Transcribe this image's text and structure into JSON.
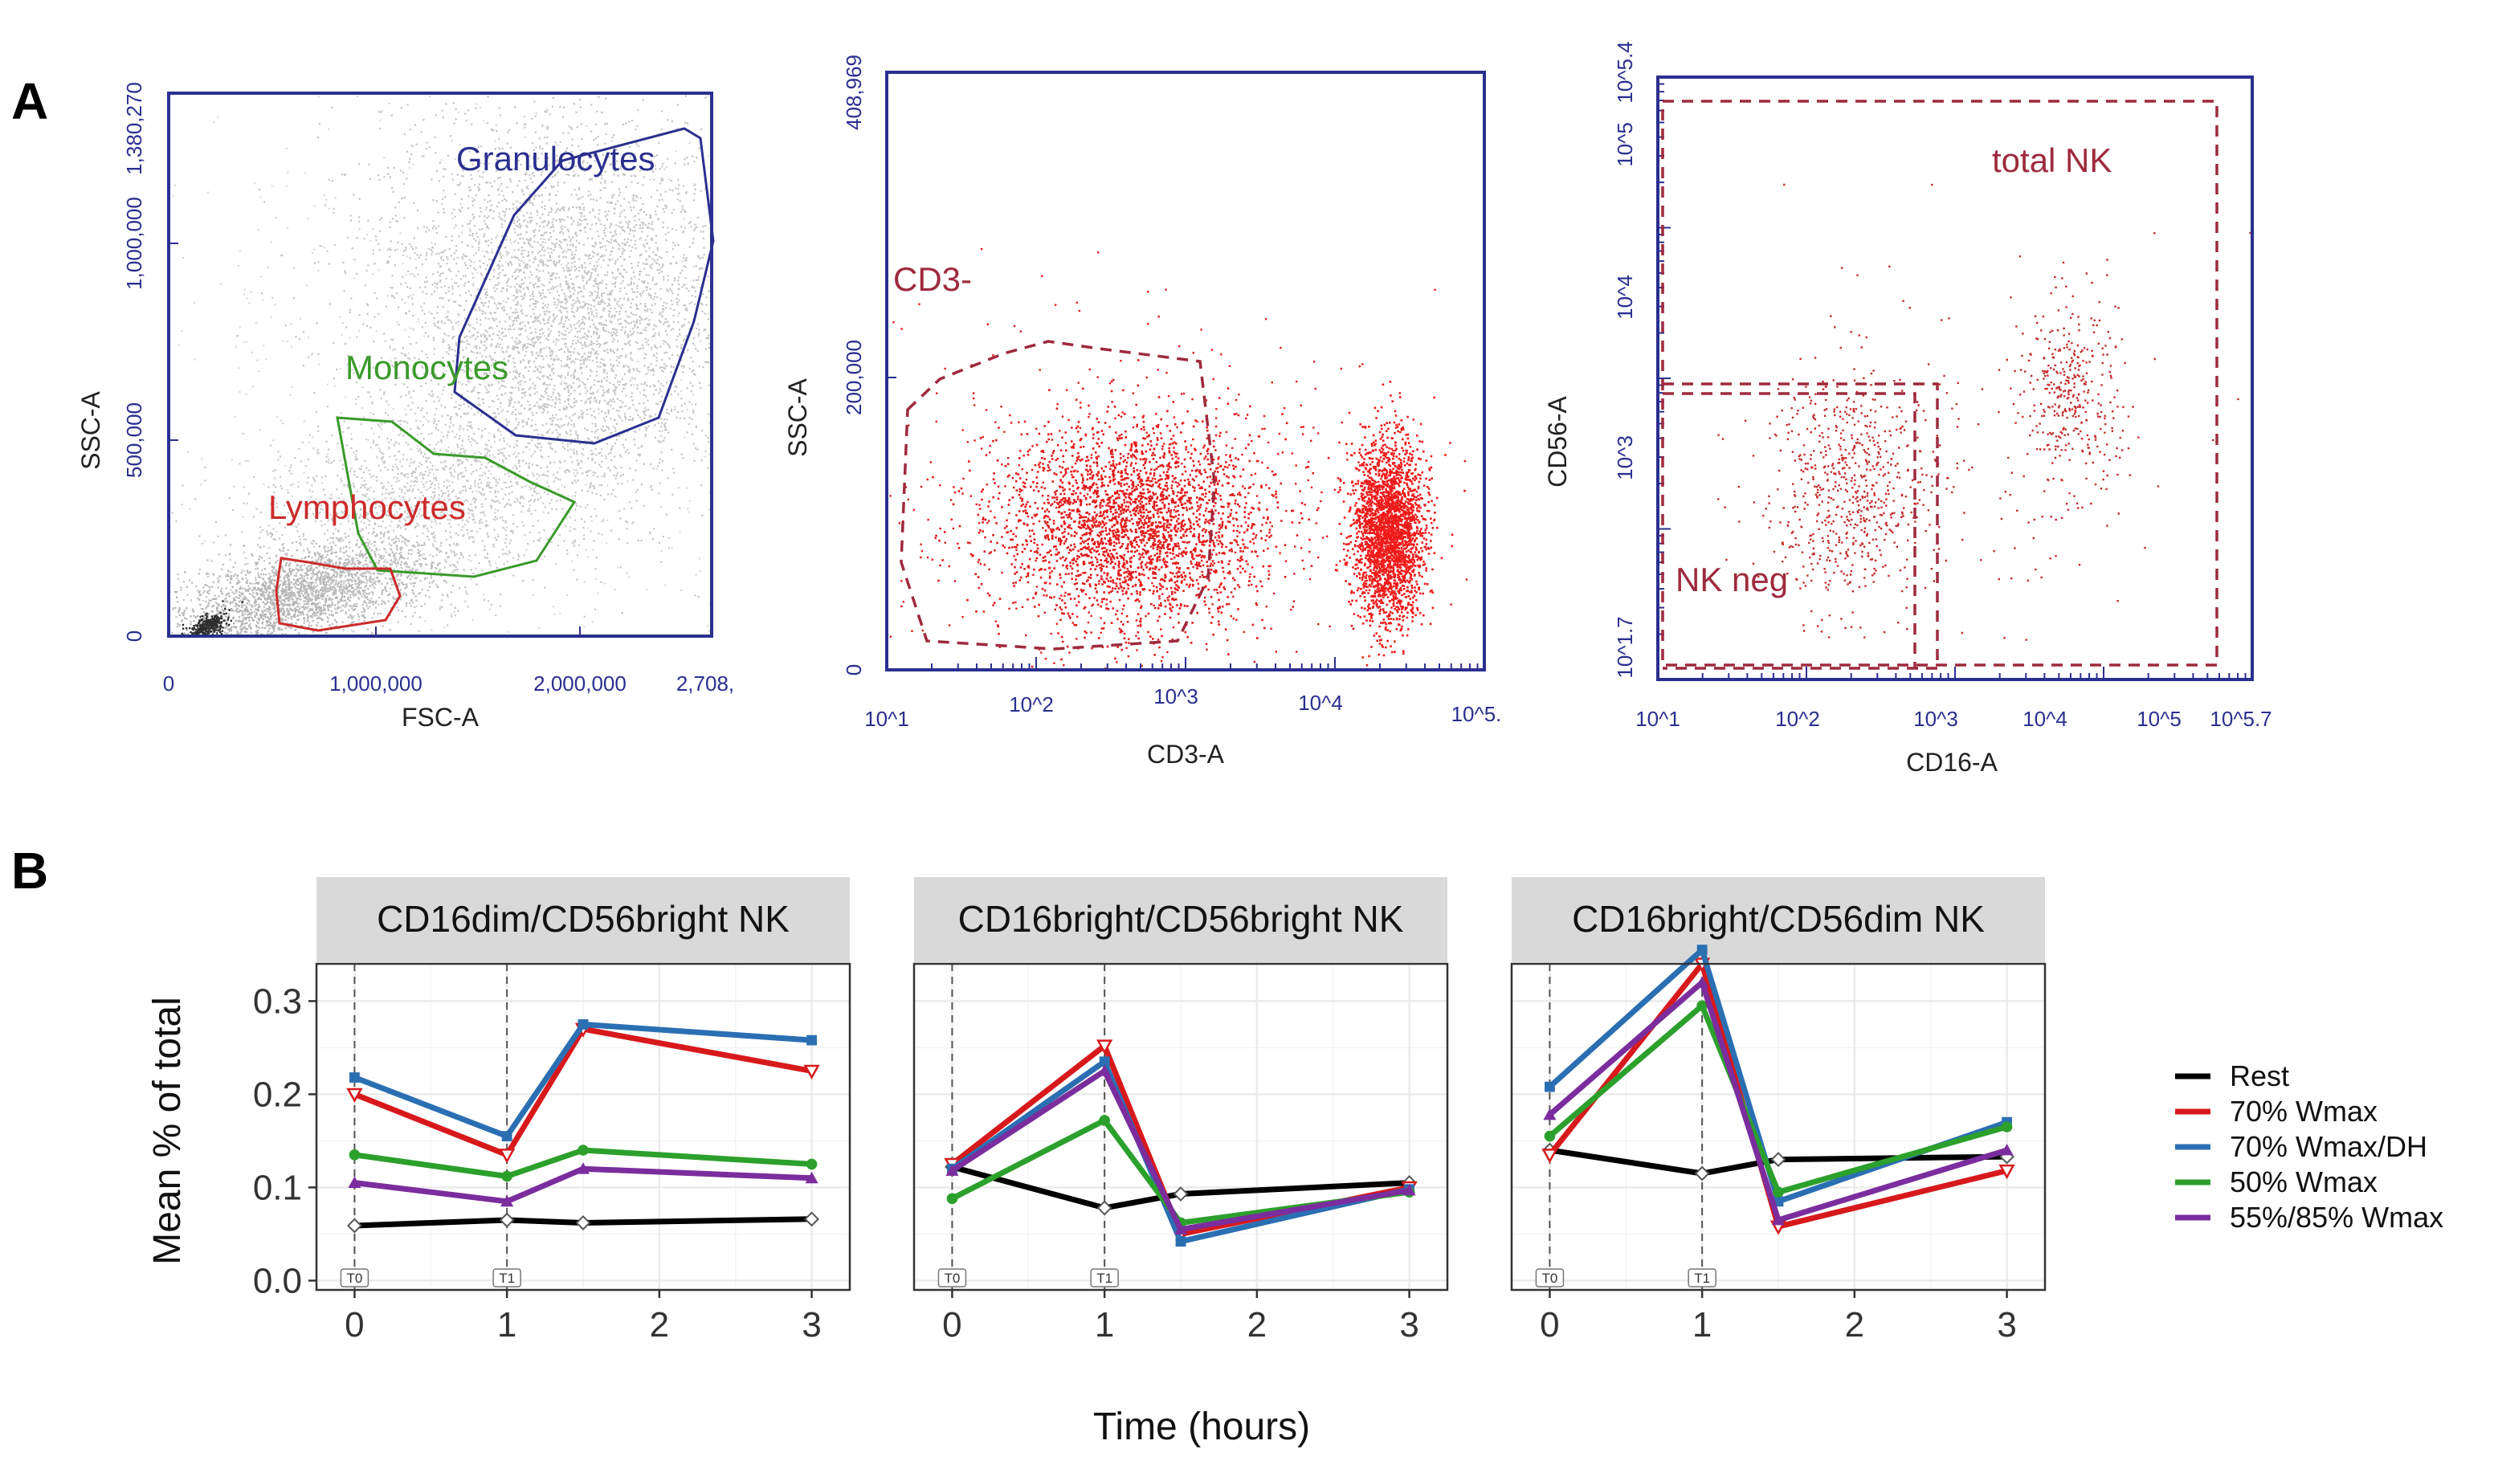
{
  "panel_a": {
    "letter": "A",
    "plots": [
      {
        "x_label": "FSC-A",
        "y_label": "SSC-A",
        "x_ticks": [
          "0",
          "1,000,000",
          "2,000,000",
          "2,708,"
        ],
        "y_ticks": [
          "0",
          "500,000",
          "1,000,000",
          "1,380,270"
        ],
        "gates": [
          {
            "label": "Granulocytes",
            "color": "#2b2f8f"
          },
          {
            "label": "Monocytes",
            "color": "#3a9a2a"
          },
          {
            "label": "Lymphocytes",
            "color": "#cc2b2b"
          }
        ]
      },
      {
        "x_label": "CD3-A",
        "y_label": "SSC-A",
        "x_ticks": [
          "10^1",
          "10^2",
          "10^3",
          "10^4",
          "10^5."
        ],
        "y_ticks": [
          "0",
          "200,000",
          "408,969"
        ],
        "gates": [
          {
            "label": "CD3-",
            "color": "#9e2a3e"
          }
        ]
      },
      {
        "x_label": "CD16-A",
        "y_label": "CD56-A",
        "x_ticks": [
          "10^1",
          "10^2",
          "10^3",
          "10^4",
          "10^5",
          "10^5.7"
        ],
        "y_ticks": [
          "10^1.7",
          "10^3",
          "10^4",
          "10^5",
          "10^5.4"
        ],
        "gates": [
          {
            "label": "total NK",
            "color": "#9e2a3e"
          },
          {
            "label": "NK neg",
            "color": "#9e2a3e"
          }
        ]
      }
    ]
  },
  "panel_b": {
    "letter": "B",
    "timepoint_labels": [
      "T0",
      "T1"
    ]
  },
  "chart_data": {
    "type": "line",
    "title": "",
    "xlabel": "Time (hours)",
    "ylabel": "Mean % of total",
    "xlim": [
      -0.25,
      3.25
    ],
    "ylim": [
      -0.01,
      0.34
    ],
    "x_ticks": [
      "0",
      "1",
      "2",
      "3"
    ],
    "y_ticks": [
      "0.0",
      "0.1",
      "0.2",
      "0.3"
    ],
    "x_tick_values": [
      0,
      1,
      2,
      3
    ],
    "y_tick_values": [
      0,
      0.1,
      0.2,
      0.3
    ],
    "x": [
      0,
      1,
      1.5,
      3
    ],
    "vlines": [
      0,
      1
    ],
    "legend": [
      "Rest",
      "70% Wmax",
      "70% Wmax/DH",
      "50% Wmax",
      "55%/85% Wmax"
    ],
    "colors": [
      "#000000",
      "#d7191c",
      "#2b6fb3",
      "#2ca02c",
      "#7b2d9e"
    ],
    "facets": [
      {
        "title": "CD16dim/CD56bright NK",
        "series": [
          {
            "name": "Rest",
            "values": [
              0.059,
              0.065,
              0.062,
              0.066
            ]
          },
          {
            "name": "70% Wmax",
            "values": [
              0.2,
              0.135,
              0.27,
              0.225
            ]
          },
          {
            "name": "70% Wmax/DH",
            "values": [
              0.218,
              0.155,
              0.275,
              0.258
            ]
          },
          {
            "name": "50% Wmax",
            "values": [
              0.135,
              0.112,
              0.14,
              0.125
            ]
          },
          {
            "name": "55%/85% Wmax",
            "values": [
              0.105,
              0.085,
              0.12,
              0.11
            ]
          }
        ]
      },
      {
        "title": "CD16bright/CD56bright NK",
        "series": [
          {
            "name": "Rest",
            "values": [
              0.122,
              0.078,
              0.093,
              0.105
            ]
          },
          {
            "name": "70% Wmax",
            "values": [
              0.125,
              0.252,
              0.05,
              0.1
            ]
          },
          {
            "name": "70% Wmax/DH",
            "values": [
              0.12,
              0.235,
              0.042,
              0.098
            ]
          },
          {
            "name": "50% Wmax",
            "values": [
              0.088,
              0.172,
              0.062,
              0.095
            ]
          },
          {
            "name": "55%/85% Wmax",
            "values": [
              0.118,
              0.225,
              0.055,
              0.097
            ]
          }
        ]
      },
      {
        "title": "CD16bright/CD56dim NK",
        "series": [
          {
            "name": "Rest",
            "values": [
              0.14,
              0.115,
              0.13,
              0.133
            ]
          },
          {
            "name": "70% Wmax",
            "values": [
              0.135,
              0.34,
              0.058,
              0.118
            ]
          },
          {
            "name": "70% Wmax/DH",
            "values": [
              0.208,
              0.355,
              0.085,
              0.17
            ]
          },
          {
            "name": "50% Wmax",
            "values": [
              0.155,
              0.295,
              0.095,
              0.165
            ]
          },
          {
            "name": "55%/85% Wmax",
            "values": [
              0.178,
              0.32,
              0.065,
              0.14
            ]
          }
        ]
      }
    ]
  }
}
